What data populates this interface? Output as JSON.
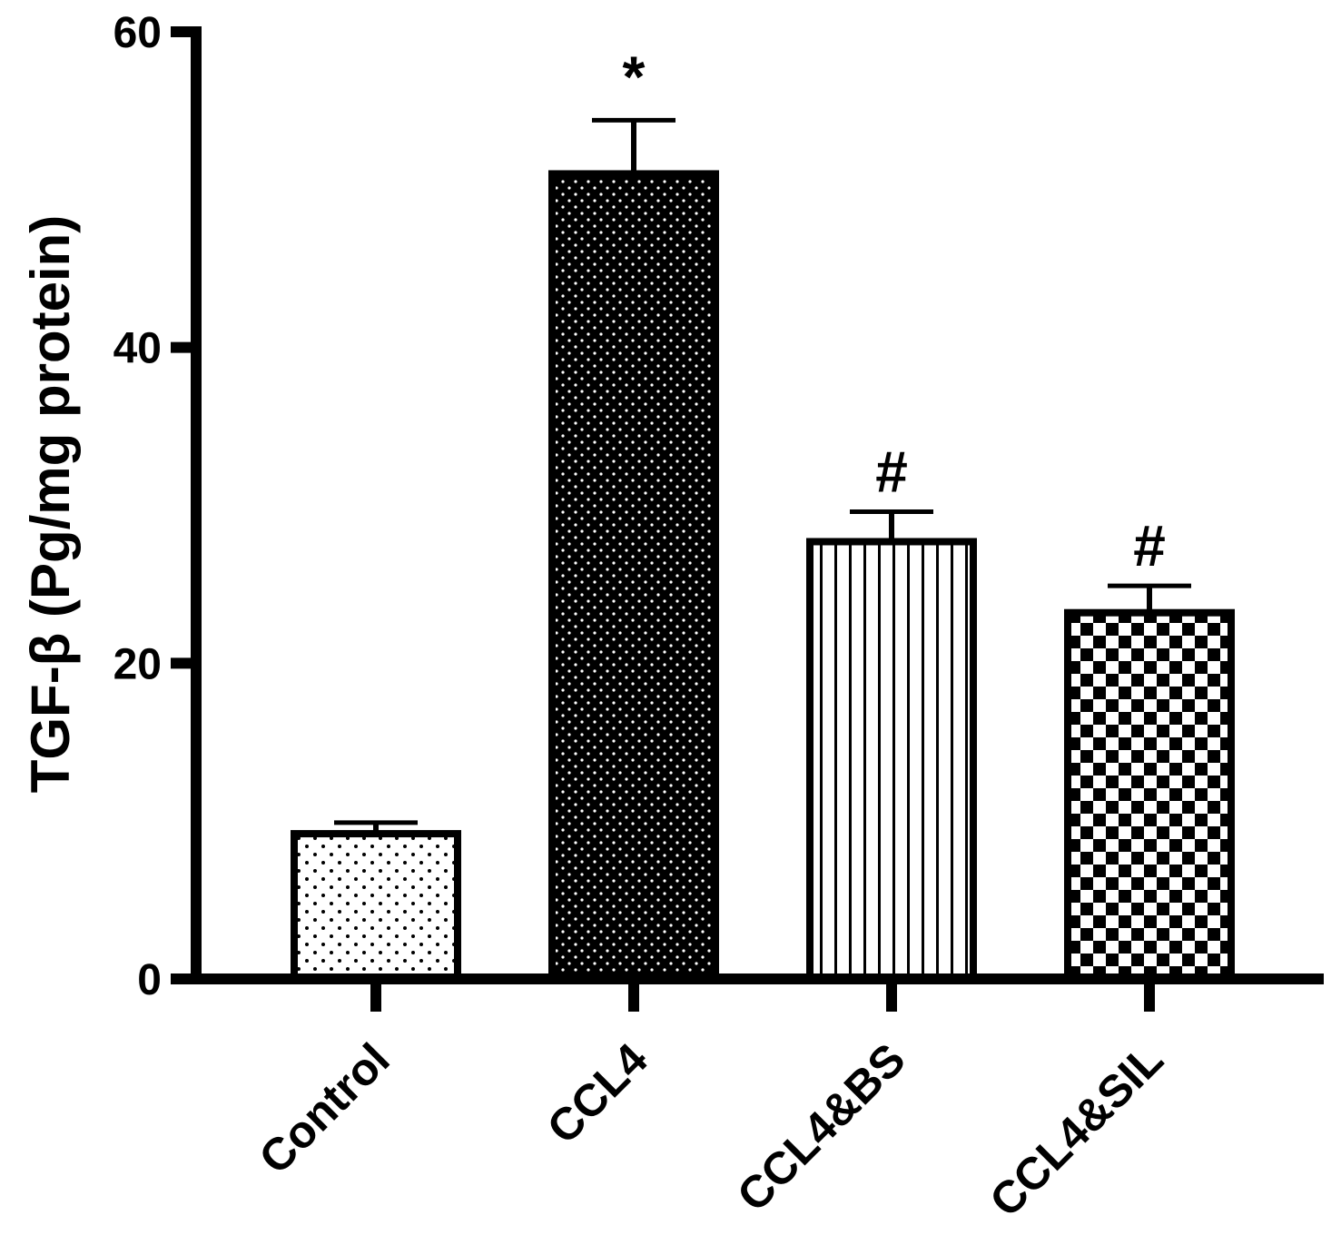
{
  "chart_data": {
    "type": "bar",
    "categories": [
      "Control",
      "CCL4",
      "CCL4&BS",
      "CCL4&SIL"
    ],
    "values": [
      9.2,
      51.0,
      27.7,
      23.2
    ],
    "errors": [
      0.7,
      3.4,
      1.9,
      1.7
    ],
    "annotations": [
      "",
      "*",
      "#",
      "#"
    ],
    "fills": [
      "sparse-dots",
      "dense-dots-dark",
      "vertical-stripes",
      "checkerboard"
    ],
    "title": "",
    "xlabel": "",
    "ylabel": "TGF-β (Pg/mg protein)",
    "ylim": [
      0,
      60
    ],
    "yticks": [
      0,
      20,
      40,
      60
    ],
    "yticklabels": [
      "0",
      "20",
      "40",
      "60"
    ],
    "grid": false,
    "legend": "none"
  }
}
